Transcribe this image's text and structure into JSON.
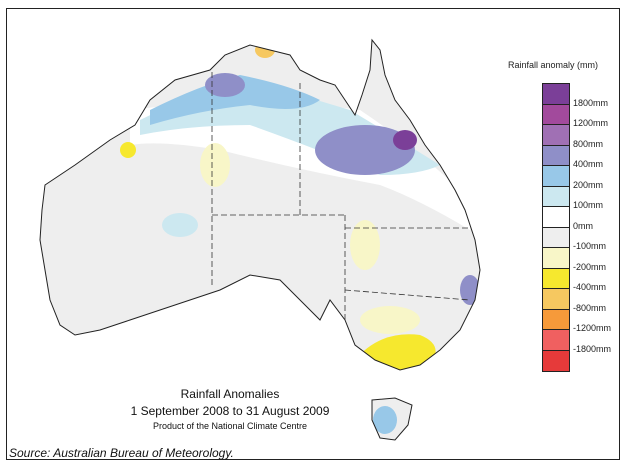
{
  "legend": {
    "title": "Rainfall anomaly (mm)",
    "colors": [
      "#7b3f98",
      "#a24a9c",
      "#a070b4",
      "#8f8fc8",
      "#98c8e8",
      "#cce8f0",
      "#ffffff",
      "#eeeeee",
      "#f8f6c8",
      "#f6e82e",
      "#f6c860",
      "#f69a3a",
      "#f06060",
      "#e63a3a"
    ],
    "labels": [
      "1800mm",
      "1200mm",
      "800mm",
      "400mm",
      "200mm",
      "100mm",
      "0mm",
      "-100mm",
      "-200mm",
      "-400mm",
      "-800mm",
      "-1200mm",
      "-1800mm"
    ]
  },
  "caption": {
    "title": "Rainfall Anomalies",
    "period": "1 September 2008 to 31 August 2009",
    "product": "Product of the National Climate Centre"
  },
  "source": "Source: Australian Bureau of Meteorology."
}
